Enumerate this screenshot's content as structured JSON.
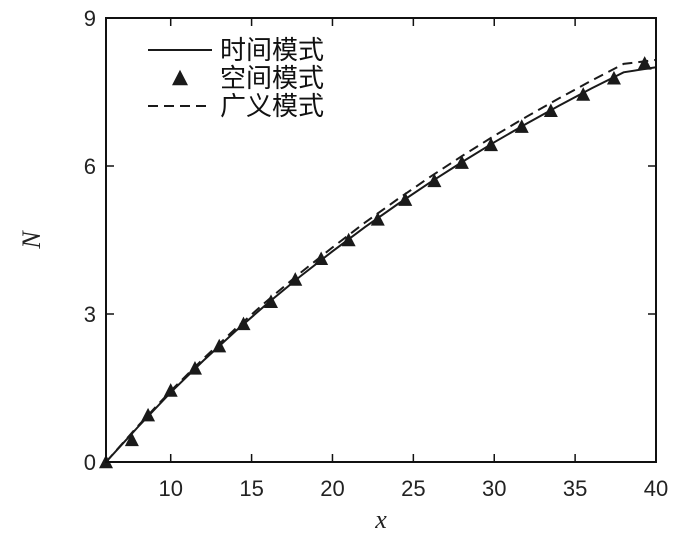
{
  "chart_data": {
    "type": "line",
    "xlabel": "x",
    "ylabel": "N",
    "xlim": [
      6,
      40
    ],
    "ylim": [
      0,
      9
    ],
    "x_ticks": [
      10,
      15,
      20,
      25,
      30,
      35,
      40
    ],
    "y_ticks": [
      0,
      3,
      6,
      9
    ],
    "legend_placement": "top-left",
    "grid": false,
    "series": [
      {
        "name": "时间模式",
        "style": "solid",
        "color": "#1a1a1a",
        "x": [
          6,
          8,
          10,
          12,
          14,
          16,
          18,
          20,
          22,
          24,
          26,
          28,
          30,
          32,
          34,
          36,
          38,
          40
        ],
        "y": [
          0,
          0.72,
          1.41,
          2.05,
          2.65,
          3.22,
          3.76,
          4.27,
          4.76,
          5.22,
          5.66,
          6.08,
          6.48,
          6.86,
          7.22,
          7.57,
          7.9,
          8.0
        ]
      },
      {
        "name": "空间模式",
        "style": "marker-triangle",
        "color": "#1a1a1a",
        "x": [
          6.0,
          7.6,
          8.6,
          10.0,
          11.5,
          13.0,
          14.5,
          16.2,
          17.7,
          19.3,
          21.0,
          22.8,
          24.5,
          26.3,
          28.0,
          29.8,
          31.7,
          33.5,
          35.5,
          37.4,
          39.3
        ],
        "y": [
          0,
          0.45,
          0.95,
          1.45,
          1.9,
          2.35,
          2.8,
          3.25,
          3.7,
          4.12,
          4.5,
          4.92,
          5.32,
          5.7,
          6.07,
          6.43,
          6.8,
          7.12,
          7.45,
          7.78,
          8.08
        ]
      },
      {
        "name": "广义模式",
        "style": "dashed",
        "color": "#1a1a1a",
        "x": [
          6,
          8,
          10,
          12,
          14,
          16,
          18,
          20,
          22,
          24,
          26,
          28,
          30,
          32,
          34,
          36,
          38,
          40
        ],
        "y": [
          0,
          0.74,
          1.44,
          2.09,
          2.7,
          3.28,
          3.83,
          4.35,
          4.85,
          5.32,
          5.77,
          6.2,
          6.61,
          7.0,
          7.37,
          7.73,
          8.07,
          8.15
        ]
      }
    ]
  }
}
